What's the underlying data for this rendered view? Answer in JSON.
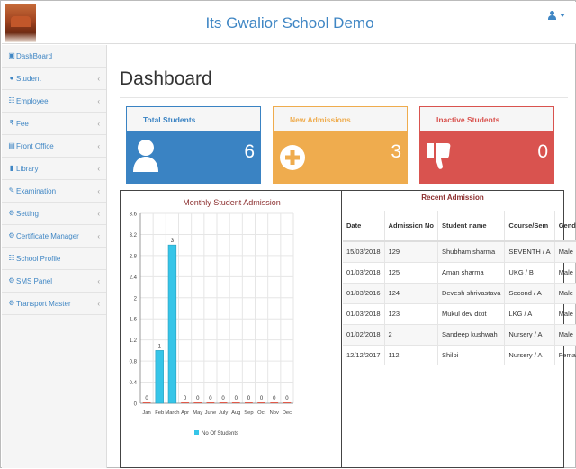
{
  "header": {
    "title": "Its Gwalior School Demo"
  },
  "sidebar": {
    "items": [
      {
        "label": "DashBoard",
        "icon": "dashboard-icon",
        "chevron": false
      },
      {
        "label": "Student",
        "icon": "user-icon",
        "chevron": true
      },
      {
        "label": "Employee",
        "icon": "sitemap-icon",
        "chevron": true
      },
      {
        "label": "Fee",
        "icon": "rupee-icon",
        "chevron": true
      },
      {
        "label": "Front Office",
        "icon": "front-office-icon",
        "chevron": true
      },
      {
        "label": "Library",
        "icon": "book-icon",
        "chevron": true
      },
      {
        "label": "Examination",
        "icon": "edit-icon",
        "chevron": true
      },
      {
        "label": "Setting",
        "icon": "gear-icon",
        "chevron": true
      },
      {
        "label": "Certificate Manager",
        "icon": "gear-icon",
        "chevron": true
      },
      {
        "label": "School Profile",
        "icon": "sitemap-icon",
        "chevron": false
      },
      {
        "label": "SMS Panel",
        "icon": "gear-icon",
        "chevron": true
      },
      {
        "label": "Transport Master",
        "icon": "gear-icon",
        "chevron": true
      }
    ],
    "chevron": "‹"
  },
  "main": {
    "page_title": "Dashboard",
    "cards": [
      {
        "label": "Total Students",
        "value": "6",
        "icon": "user-icon",
        "color": "#3a83c3"
      },
      {
        "label": "New Admissions",
        "value": "3",
        "icon": "plus-circle-icon",
        "color": "#efac4e"
      },
      {
        "label": "Inactive Students",
        "value": "0",
        "icon": "thumbs-down-icon",
        "color": "#d9534f"
      }
    ]
  },
  "chart_data": {
    "type": "bar",
    "title": "Monthly Student Admission",
    "categories": [
      "Jan",
      "Feb",
      "March",
      "Apr",
      "May",
      "June",
      "July",
      "Aug",
      "Sep",
      "Oct",
      "Nov",
      "Dec"
    ],
    "series": [
      {
        "name": "No Of Students",
        "values": [
          0,
          1,
          3,
          0,
          0,
          0,
          0,
          0,
          0,
          0,
          0,
          0
        ],
        "color": "#36c5e8"
      }
    ],
    "ylim": [
      0,
      3.6
    ],
    "yticks": [
      "0",
      "0.4",
      "0.8",
      "1.2",
      "1.6",
      "2",
      "2.4",
      "2.8",
      "3.2",
      "3.6"
    ],
    "grid": true,
    "legend": "bottom"
  },
  "recent_admission": {
    "title": "Recent Admission",
    "columns": [
      "Date",
      "Admission No",
      "Student name",
      "Course/Sem",
      "Gender"
    ],
    "rows": [
      [
        "15/03/2018",
        "129",
        "Shubham sharma",
        "SEVENTH / A",
        "Male"
      ],
      [
        "01/03/2018",
        "125",
        "Aman sharma",
        "UKG / B",
        "Male"
      ],
      [
        "01/03/2016",
        "124",
        "Devesh shrivastava",
        "Second / A",
        "Male"
      ],
      [
        "01/03/2018",
        "123",
        "Mukul dev dixit",
        "LKG / A",
        "Male"
      ],
      [
        "01/02/2018",
        "2",
        "Sandeep kushwah",
        "Nursery / A",
        "Male"
      ],
      [
        "12/12/2017",
        "112",
        "Shilpi",
        "Nursery / A",
        "Female"
      ]
    ]
  }
}
